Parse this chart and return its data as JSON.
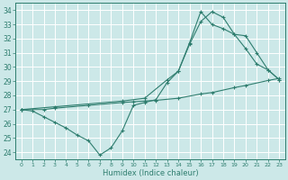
{
  "xlabel": "Humidex (Indice chaleur)",
  "bg_color": "#cce8e8",
  "grid_color": "#b8d8d8",
  "line_color": "#2e7d6e",
  "xlim": [
    -0.5,
    23.5
  ],
  "ylim": [
    23.5,
    34.5
  ],
  "xticks": [
    0,
    1,
    2,
    3,
    4,
    5,
    6,
    7,
    8,
    9,
    10,
    11,
    12,
    13,
    14,
    15,
    16,
    17,
    18,
    19,
    20,
    21,
    22,
    23
  ],
  "yticks": [
    24,
    25,
    26,
    27,
    28,
    29,
    30,
    31,
    32,
    33,
    34
  ],
  "line1_x": [
    0,
    1,
    2,
    3,
    4,
    5,
    6,
    7,
    8,
    9,
    10,
    11,
    12,
    13,
    14,
    15,
    16,
    17,
    18,
    19,
    20,
    21,
    22,
    23
  ],
  "line1_y": [
    27.0,
    26.9,
    26.5,
    26.1,
    25.7,
    25.2,
    24.8,
    23.8,
    24.3,
    25.5,
    27.3,
    27.5,
    27.7,
    28.9,
    29.7,
    31.6,
    33.2,
    33.9,
    33.5,
    32.3,
    31.3,
    30.2,
    29.8,
    29.1
  ],
  "line2_x": [
    0,
    2,
    3,
    6,
    9,
    10,
    11,
    12,
    14,
    16,
    17,
    19,
    20,
    22,
    23
  ],
  "line2_y": [
    27.0,
    27.0,
    27.1,
    27.3,
    27.5,
    27.55,
    27.6,
    27.65,
    27.8,
    28.1,
    28.2,
    28.55,
    28.7,
    29.05,
    29.2
  ],
  "line3_x": [
    0,
    3,
    9,
    11,
    13,
    14,
    15,
    16,
    17,
    18,
    19,
    20,
    21,
    22,
    23
  ],
  "line3_y": [
    27.0,
    27.2,
    27.6,
    27.8,
    29.1,
    29.7,
    31.7,
    33.9,
    33.0,
    32.7,
    32.3,
    32.2,
    31.0,
    29.8,
    29.1
  ]
}
